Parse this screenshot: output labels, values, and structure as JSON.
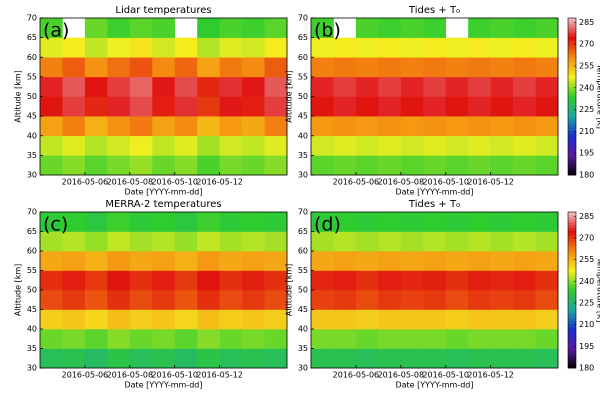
{
  "chart_data": [
    {
      "type": "heatmap",
      "title": "Lidar temperatures",
      "label": "(a)",
      "xlabel": "Date  [YYYY-mm-dd]",
      "ylabel": "Altitude [km]",
      "x": [
        "2016-05-04",
        "2016-05-05",
        "2016-05-06",
        "2016-05-07",
        "2016-05-08",
        "2016-05-09",
        "2016-05-10",
        "2016-05-11",
        "2016-05-12",
        "2016-05-13",
        "2016-05-14"
      ],
      "y": [
        30,
        35,
        40,
        45,
        50,
        55,
        60,
        65
      ],
      "values": [
        [
          238,
          240,
          237,
          239,
          241,
          238,
          240,
          236,
          239,
          238,
          240
        ],
        [
          244,
          246,
          243,
          245,
          247,
          244,
          246,
          242,
          245,
          244,
          246
        ],
        [
          258,
          262,
          256,
          260,
          263,
          258,
          261,
          255,
          259,
          257,
          262
        ],
        [
          274,
          278,
          272,
          276,
          279,
          273,
          277,
          270,
          275,
          273,
          278
        ],
        [
          276,
          280,
          274,
          278,
          281,
          275,
          279,
          272,
          277,
          275,
          280
        ],
        [
          262,
          266,
          260,
          264,
          267,
          261,
          265,
          258,
          263,
          261,
          266
        ],
        [
          246,
          248,
          244,
          247,
          249,
          245,
          248,
          243,
          246,
          245,
          248
        ],
        [
          236,
          null,
          238,
          235,
          237,
          236,
          null,
          234,
          236,
          235,
          237
        ]
      ],
      "xlim": [
        "2016-05-04",
        "2016-05-15"
      ],
      "xticks": [
        "2016-05-06",
        "2016-05-08",
        "2016-05-10",
        "2016-05-12"
      ],
      "ylim": [
        30,
        70
      ],
      "yticks": [
        30,
        35,
        40,
        45,
        50,
        55,
        60,
        65,
        70
      ]
    },
    {
      "type": "heatmap",
      "title": "Tides + T₀",
      "label": "(b)",
      "xlabel": "Date  [YYYY-mm-dd]",
      "ylabel": "Altitude [km]",
      "x": [
        "2016-05-04",
        "2016-05-05",
        "2016-05-06",
        "2016-05-07",
        "2016-05-08",
        "2016-05-09",
        "2016-05-10",
        "2016-05-11",
        "2016-05-12",
        "2016-05-13",
        "2016-05-14"
      ],
      "y": [
        30,
        35,
        40,
        45,
        50,
        55,
        60,
        65
      ],
      "values": [
        [
          237,
          238,
          237,
          238,
          237,
          238,
          237,
          238,
          237,
          238,
          237
        ],
        [
          245,
          246,
          245,
          246,
          245,
          246,
          245,
          246,
          245,
          246,
          245
        ],
        [
          259,
          260,
          259,
          260,
          259,
          260,
          259,
          260,
          259,
          260,
          259
        ],
        [
          274,
          276,
          274,
          276,
          274,
          276,
          274,
          276,
          274,
          276,
          274
        ],
        [
          276,
          278,
          276,
          278,
          276,
          278,
          276,
          278,
          276,
          278,
          276
        ],
        [
          262,
          263,
          262,
          263,
          262,
          263,
          262,
          263,
          262,
          263,
          262
        ],
        [
          247,
          248,
          247,
          248,
          247,
          248,
          247,
          248,
          247,
          248,
          247
        ],
        [
          235,
          null,
          236,
          235,
          236,
          235,
          null,
          235,
          236,
          235,
          236
        ]
      ],
      "xlim": [
        "2016-05-04",
        "2016-05-15"
      ],
      "xticks": [
        "2016-05-06",
        "2016-05-08",
        "2016-05-10",
        "2016-05-12"
      ],
      "ylim": [
        30,
        70
      ],
      "yticks": [
        30,
        35,
        40,
        45,
        50,
        55,
        60,
        65,
        70
      ],
      "colorbar": {
        "label": "Temperature [K]",
        "clim": [
          180,
          288
        ],
        "ticks": [
          180,
          195,
          210,
          225,
          240,
          255,
          270,
          285
        ]
      }
    },
    {
      "type": "heatmap",
      "title": "MERRA-2 temperatures",
      "label": "(c)",
      "xlabel": "Date  [YYYY-mm-dd]",
      "ylabel": "Altitude [km]",
      "x": [
        "2016-05-04",
        "2016-05-05",
        "2016-05-06",
        "2016-05-07",
        "2016-05-08",
        "2016-05-09",
        "2016-05-10",
        "2016-05-11",
        "2016-05-12",
        "2016-05-13",
        "2016-05-14"
      ],
      "y": [
        30,
        35,
        40,
        45,
        50,
        55,
        60,
        65
      ],
      "values": [
        [
          229,
          230,
          228,
          231,
          229,
          230,
          228,
          231,
          229,
          230,
          229
        ],
        [
          238,
          239,
          237,
          240,
          238,
          239,
          237,
          240,
          238,
          239,
          238
        ],
        [
          252,
          253,
          251,
          254,
          252,
          253,
          251,
          254,
          252,
          253,
          252
        ],
        [
          268,
          270,
          267,
          271,
          268,
          270,
          267,
          271,
          268,
          270,
          268
        ],
        [
          271,
          273,
          270,
          274,
          271,
          273,
          270,
          274,
          271,
          273,
          271
        ],
        [
          257,
          258,
          256,
          259,
          257,
          258,
          256,
          259,
          257,
          258,
          257
        ],
        [
          242,
          243,
          241,
          244,
          242,
          243,
          241,
          244,
          242,
          243,
          242
        ],
        [
          233,
          234,
          232,
          235,
          233,
          234,
          232,
          235,
          233,
          234,
          233
        ]
      ],
      "xlim": [
        "2016-05-04",
        "2016-05-15"
      ],
      "xticks": [
        "2016-05-06",
        "2016-05-08",
        "2016-05-10",
        "2016-05-12"
      ],
      "ylim": [
        30,
        70
      ],
      "yticks": [
        30,
        35,
        40,
        45,
        50,
        55,
        60,
        65,
        70
      ]
    },
    {
      "type": "heatmap",
      "title": "Tides + T₀",
      "label": "(d)",
      "xlabel": "Date  [YYYY-mm-dd]",
      "ylabel": "Altitude [km]",
      "x": [
        "2016-05-04",
        "2016-05-05",
        "2016-05-06",
        "2016-05-07",
        "2016-05-08",
        "2016-05-09",
        "2016-05-10",
        "2016-05-11",
        "2016-05-12",
        "2016-05-13",
        "2016-05-14"
      ],
      "y": [
        30,
        35,
        40,
        45,
        50,
        55,
        60,
        65
      ],
      "values": [
        [
          230,
          230,
          229,
          230,
          230,
          230,
          229,
          230,
          230,
          230,
          229
        ],
        [
          239,
          239,
          238,
          239,
          239,
          239,
          238,
          239,
          239,
          239,
          238
        ],
        [
          253,
          253,
          252,
          253,
          253,
          253,
          252,
          253,
          253,
          253,
          252
        ],
        [
          269,
          270,
          268,
          270,
          269,
          270,
          268,
          270,
          269,
          270,
          268
        ],
        [
          272,
          273,
          271,
          273,
          272,
          273,
          271,
          273,
          272,
          273,
          271
        ],
        [
          257,
          258,
          257,
          258,
          257,
          258,
          257,
          258,
          257,
          258,
          257
        ],
        [
          242,
          243,
          242,
          243,
          242,
          243,
          242,
          243,
          242,
          243,
          242
        ],
        [
          233,
          234,
          233,
          234,
          233,
          234,
          233,
          234,
          233,
          234,
          233
        ]
      ],
      "xlim": [
        "2016-05-04",
        "2016-05-15"
      ],
      "xticks": [
        "2016-05-06",
        "2016-05-08",
        "2016-05-10",
        "2016-05-12"
      ],
      "ylim": [
        30,
        70
      ],
      "yticks": [
        30,
        35,
        40,
        45,
        50,
        55,
        60,
        65,
        70
      ],
      "colorbar": {
        "label": "Temperature [K]",
        "clim": [
          180,
          288
        ],
        "ticks": [
          180,
          195,
          210,
          225,
          240,
          255,
          270,
          285
        ]
      }
    }
  ]
}
